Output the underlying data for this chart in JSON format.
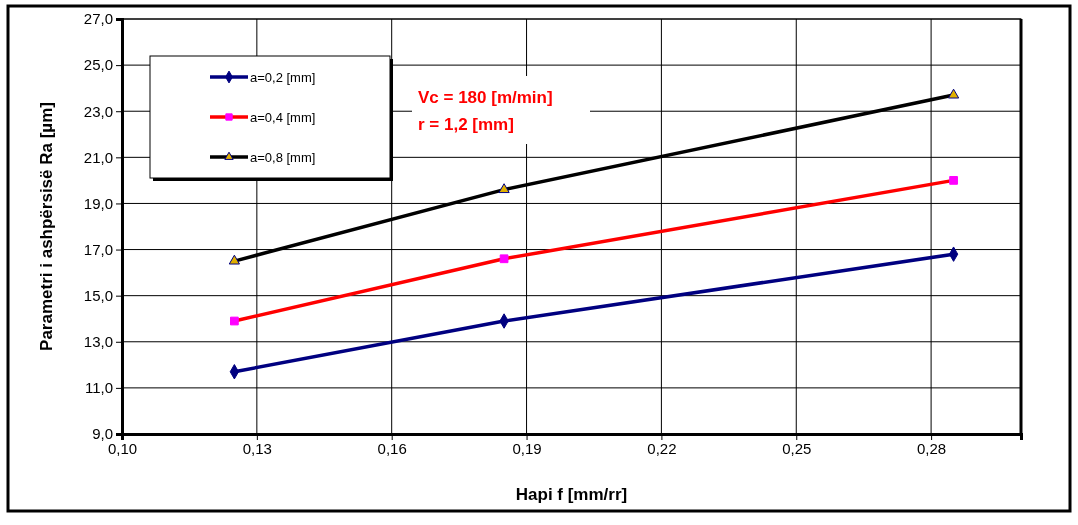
{
  "chart_data": {
    "type": "line",
    "xlabel": "Hapi f [mm/rr]",
    "ylabel": "Parametri i ashpërsisë Ra  [µm]",
    "x": [
      0.125,
      0.185,
      0.285
    ],
    "series": [
      {
        "name": "a=0,2 [mm]",
        "color": "#000080",
        "values": [
          11.7,
          13.9,
          16.8
        ],
        "marker": "diamond"
      },
      {
        "name": "a=0,4 [mm]",
        "color": "#ff0000",
        "values": [
          13.9,
          16.6,
          20.0
        ],
        "marker": "square"
      },
      {
        "name": "a=0,8 [mm]",
        "color": "#000000",
        "values": [
          16.5,
          19.6,
          23.7
        ],
        "marker": "triangle"
      }
    ],
    "xlim": [
      0.1,
      0.3
    ],
    "xticks": [
      {
        "value": 0.1,
        "label": "0,10"
      },
      {
        "value": 0.13,
        "label": "0,13"
      },
      {
        "value": 0.16,
        "label": "0,16"
      },
      {
        "value": 0.19,
        "label": "0,19"
      },
      {
        "value": 0.22,
        "label": "0,22"
      },
      {
        "value": 0.25,
        "label": "0,25"
      },
      {
        "value": 0.28,
        "label": "0,28"
      }
    ],
    "ylim": [
      9,
      27
    ],
    "yticks": [
      {
        "value": 9,
        "label": "9,0"
      },
      {
        "value": 11,
        "label": "11,0"
      },
      {
        "value": 13,
        "label": "13,0"
      },
      {
        "value": 15,
        "label": "15,0"
      },
      {
        "value": 17,
        "label": "17,0"
      },
      {
        "value": 19,
        "label": "19,0"
      },
      {
        "value": 21,
        "label": "21,0"
      },
      {
        "value": 23,
        "label": "23,0"
      },
      {
        "value": 25,
        "label": "25,0"
      },
      {
        "value": 27,
        "label": "27,0"
      }
    ],
    "grid": true,
    "legend": "top left",
    "line_style": "solid",
    "annotations": [
      "Vc = 180 [m/min]",
      "r = 1,2 [mm]"
    ]
  }
}
